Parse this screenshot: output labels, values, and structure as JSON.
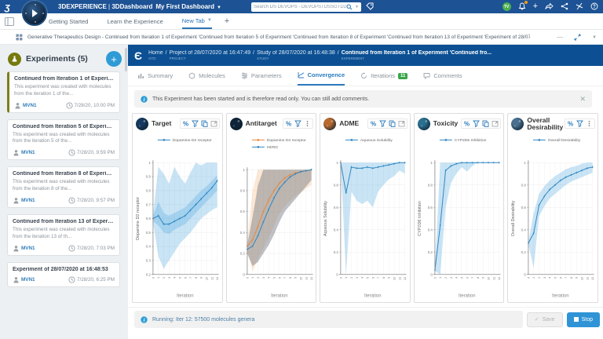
{
  "topbar": {
    "brand": "3DEXPERIENCE",
    "sep": "|",
    "app": "3DDashboard",
    "dashboard": "My First Dashboard",
    "search_placeholder": "Search DS DEVOPS - DEVOPSTDSSGTD2224",
    "avatar_initials": "TV"
  },
  "tabs_row": {
    "tabs": [
      {
        "label": "Getting Started",
        "active": false
      },
      {
        "label": "Learn the Experience",
        "active": false
      },
      {
        "label": "New Tab",
        "active": true
      }
    ],
    "add_label": "+"
  },
  "breadcrumb_row": {
    "text": "Generative Therapeutics Design - Continued from Iteration 1 of Experiment 'Continued from Iteration 5 of Experiment 'Continued from Iteration 8 of Experiment 'Continued from Iteration 13 of Experiment 'Experiment of 28/07/2020 at 16:48:53''''"
  },
  "sidebar": {
    "title": "Experiments (5)",
    "cards": [
      {
        "title": "Continued from Iteration 1 of Experime...",
        "desc": "This experiment was created with molecules from the iteration 1 of the...",
        "author": "MVN1",
        "time": "7/28/20, 10:00 PM",
        "selected": true
      },
      {
        "title": "Continued from Iteration 5 of Experimen...",
        "desc": "This experiment was created with molecules from the iteration 5 of the...",
        "author": "MVN1",
        "time": "7/28/20, 9:59 PM",
        "selected": false
      },
      {
        "title": "Continued from Iteration 8 of Experimen...",
        "desc": "This experiment was created with molecules from the iteration 8 of the...",
        "author": "MVN1",
        "time": "7/28/20, 9:57 PM",
        "selected": false
      },
      {
        "title": "Continued from Iteration 13 of Experime...",
        "desc": "This experiment was created with molecules from the iteration 13 of th...",
        "author": "MVN1",
        "time": "7/28/20, 7:03 PM",
        "selected": false
      },
      {
        "title": "Experiment of 28/07/2020 at 16:48:53",
        "desc": "",
        "author": "MVN1",
        "time": "7/28/20, 6:25 PM",
        "selected": false
      }
    ]
  },
  "main": {
    "crumbs": [
      {
        "text": "Home",
        "sub": "GTD",
        "bold": false
      },
      {
        "text": "Project of 28/07/2020 at 16:47:49",
        "sub": "PROJECT",
        "bold": false
      },
      {
        "text": "Study of 28/07/2020 at 16:48:38",
        "sub": "STUDY",
        "bold": false
      },
      {
        "text": "Continued from Iteration 1 of Experiment 'Continued fro...",
        "sub": "EXPERIMENT",
        "bold": true
      }
    ],
    "tabs": [
      {
        "label": "Summary",
        "icon": "summary-icon",
        "active": false
      },
      {
        "label": "Molecules",
        "icon": "molecules-icon",
        "active": false
      },
      {
        "label": "Parameters",
        "icon": "parameters-icon",
        "active": false
      },
      {
        "label": "Convergence",
        "icon": "convergence-icon",
        "active": true
      },
      {
        "label": "Iterations",
        "icon": "iterations-icon",
        "active": false,
        "badge": "11"
      },
      {
        "label": "Comments",
        "icon": "comments-icon",
        "active": false
      }
    ],
    "banner": "This Experiment has been started and is therefore read only. You can still add comments.",
    "status": "Running: Iter 12: 57500 molecules genera",
    "save_label": "Save",
    "stop_label": "Stop"
  },
  "chart_data": [
    {
      "type": "line",
      "title": "Target",
      "icon_color": "#16395f",
      "toolbar": [
        "percent-icon",
        "filter-icon",
        "copy-icon",
        "expand-icon"
      ],
      "xlabel": "Iteration",
      "ylabel": "Dopamine D2 receptor",
      "ylim": [
        0.2,
        1
      ],
      "yticks": [
        0.2,
        0.3,
        0.4,
        0.5,
        0.6,
        0.7,
        0.8,
        0.9,
        1
      ],
      "x": [
        0,
        1,
        2,
        3,
        4,
        5,
        6,
        7,
        8,
        9,
        10,
        11,
        12
      ],
      "series": [
        {
          "name": "Dopamine D2 receptor",
          "color": "#2e86c1",
          "band_color": "rgba(77,166,221,0.30)",
          "values": [
            0.6,
            0.62,
            0.56,
            0.56,
            0.58,
            0.6,
            0.62,
            0.66,
            0.7,
            0.74,
            0.78,
            0.82,
            0.87
          ],
          "band_low": [
            0.57,
            0.33,
            0.24,
            0.3,
            0.36,
            0.42,
            0.46,
            0.5,
            0.55,
            0.6,
            0.63,
            0.66,
            0.68
          ],
          "band_high": [
            0.63,
            0.97,
            0.92,
            0.85,
            0.97,
            0.9,
            0.85,
            0.93,
            1.0,
            0.98,
            1.0,
            1.0,
            1.0
          ],
          "inner_low": [
            0.58,
            0.55,
            0.5,
            0.49,
            0.52,
            0.54,
            0.56,
            0.6,
            0.64,
            0.68,
            0.72,
            0.76,
            0.8
          ],
          "inner_high": [
            0.62,
            0.72,
            0.64,
            0.62,
            0.64,
            0.66,
            0.68,
            0.72,
            0.76,
            0.8,
            0.83,
            0.87,
            0.91
          ]
        }
      ]
    },
    {
      "type": "line",
      "title": "Antitarget",
      "icon_color": "#0e2438",
      "toolbar": [
        "percent-icon",
        "filter-icon",
        "dots-icon"
      ],
      "xlabel": "Iteration",
      "ylabel": "",
      "ylim": [
        0,
        1
      ],
      "yticks": [
        0,
        0.2,
        0.4,
        0.6,
        0.8,
        1
      ],
      "x": [
        0,
        1,
        2,
        3,
        4,
        5,
        6,
        7,
        8,
        9,
        10,
        11,
        12
      ],
      "series": [
        {
          "name": "Dopamine D4 receptor",
          "color": "#e8883a",
          "band_color": "rgba(243,166,95,0.26)",
          "values": [
            0.27,
            0.33,
            0.46,
            0.6,
            0.71,
            0.8,
            0.87,
            0.92,
            0.95,
            0.97,
            0.98,
            0.99,
            1.0
          ],
          "band_low": [
            0.23,
            0.03,
            0.15,
            0.25,
            0.35,
            0.47,
            0.58,
            0.65,
            0.7,
            0.75,
            0.78,
            0.82,
            0.85
          ],
          "band_high": [
            0.31,
            0.8,
            1.0,
            1.0,
            1.0,
            1.0,
            1.0,
            1.0,
            1.0,
            1.0,
            1.0,
            1.0,
            1.0
          ]
        },
        {
          "name": "HERG",
          "color": "#2e86c1",
          "band_color": "rgba(120,126,133,0.48)",
          "values": [
            0.24,
            0.27,
            0.37,
            0.5,
            0.62,
            0.73,
            0.82,
            0.88,
            0.93,
            0.96,
            0.98,
            0.99,
            1.0
          ],
          "band_low": [
            0.2,
            0.08,
            0.12,
            0.2,
            0.28,
            0.38,
            0.5,
            0.6,
            0.66,
            0.72,
            0.78,
            0.84,
            0.9
          ],
          "band_high": [
            0.28,
            0.55,
            0.85,
            1.0,
            1.0,
            1.0,
            1.0,
            1.0,
            1.0,
            1.0,
            1.0,
            1.0,
            1.0
          ]
        }
      ]
    },
    {
      "type": "line",
      "title": "ADME",
      "icon_color": "#b86a2e",
      "toolbar": [
        "percent-icon",
        "filter-icon",
        "copy-icon",
        "expand-icon"
      ],
      "xlabel": "Iteration",
      "ylabel": "Aqueous Solubility",
      "ylim": [
        0,
        1
      ],
      "yticks": [
        0,
        0.2,
        0.4,
        0.6,
        0.8,
        1
      ],
      "x": [
        0,
        1,
        2,
        3,
        4,
        5,
        6,
        7,
        8,
        9,
        10,
        11,
        12
      ],
      "series": [
        {
          "name": "Aqueous Solubility",
          "color": "#2e86c1",
          "band_color": "rgba(77,166,221,0.30)",
          "values": [
            1.0,
            0.73,
            0.96,
            0.95,
            0.95,
            0.96,
            0.95,
            0.96,
            0.97,
            0.98,
            0.99,
            1.0,
            1.0
          ],
          "band_low": [
            1.0,
            0.0,
            0.74,
            0.66,
            0.63,
            0.66,
            0.6,
            0.74,
            0.8,
            0.85,
            0.88,
            0.93,
            0.9
          ],
          "band_high": [
            1.0,
            1.0,
            1.0,
            1.0,
            1.0,
            1.0,
            1.0,
            1.0,
            1.0,
            1.0,
            1.0,
            1.0,
            1.0
          ]
        }
      ]
    },
    {
      "type": "line",
      "title": "Toxicity",
      "icon_color": "#2a6f8f",
      "toolbar": [
        "percent-icon",
        "filter-icon",
        "copy-icon",
        "expand-icon"
      ],
      "xlabel": "Iteration",
      "ylabel": "CYP2D6 Inhibition",
      "ylim": [
        0,
        1
      ],
      "yticks": [
        0,
        0.2,
        0.4,
        0.6,
        0.8,
        1
      ],
      "x": [
        0,
        1,
        2,
        3,
        4,
        5,
        6,
        7,
        8,
        9,
        10,
        11,
        12
      ],
      "series": [
        {
          "name": "CYP2D6 Inhibition",
          "color": "#2e86c1",
          "band_color": "rgba(77,166,221,0.30)",
          "values": [
            0.04,
            0.44,
            0.93,
            0.97,
            0.99,
            1.0,
            1.0,
            1.0,
            1.0,
            1.0,
            1.0,
            1.0,
            1.0
          ],
          "band_low": [
            0.03,
            0.0,
            0.6,
            0.82,
            0.9,
            0.96,
            0.92,
            0.97,
            1.0,
            1.0,
            1.0,
            1.0,
            1.0
          ],
          "band_high": [
            0.05,
            1.0,
            1.0,
            1.0,
            1.0,
            1.0,
            1.0,
            1.0,
            1.0,
            1.0,
            1.0,
            1.0,
            1.0
          ]
        }
      ]
    },
    {
      "type": "line",
      "title": "Overall Desirability",
      "icon_color": "#4a6f8f",
      "toolbar": [
        "percent-icon",
        "filter-icon",
        "dots-icon"
      ],
      "xlabel": "Iteration",
      "ylabel": "Overall Desirability",
      "ylim": [
        0,
        1
      ],
      "yticks": [
        0,
        0.2,
        0.4,
        0.6,
        0.8,
        1
      ],
      "x": [
        0,
        1,
        2,
        3,
        4,
        5,
        6,
        7,
        8,
        9,
        10,
        11,
        12
      ],
      "series": [
        {
          "name": "Overall Desirability",
          "color": "#2e86c1",
          "band_color": "rgba(77,166,221,0.30)",
          "values": [
            0.28,
            0.37,
            0.62,
            0.7,
            0.76,
            0.8,
            0.84,
            0.87,
            0.89,
            0.91,
            0.93,
            0.95,
            0.96
          ],
          "band_low": [
            0.27,
            0.06,
            0.52,
            0.61,
            0.68,
            0.72,
            0.76,
            0.8,
            0.83,
            0.85,
            0.87,
            0.89,
            0.91
          ],
          "band_high": [
            0.29,
            0.55,
            0.72,
            0.79,
            0.84,
            0.88,
            0.91,
            0.94,
            0.96,
            0.97,
            0.99,
            1.0,
            1.0
          ]
        }
      ]
    }
  ]
}
